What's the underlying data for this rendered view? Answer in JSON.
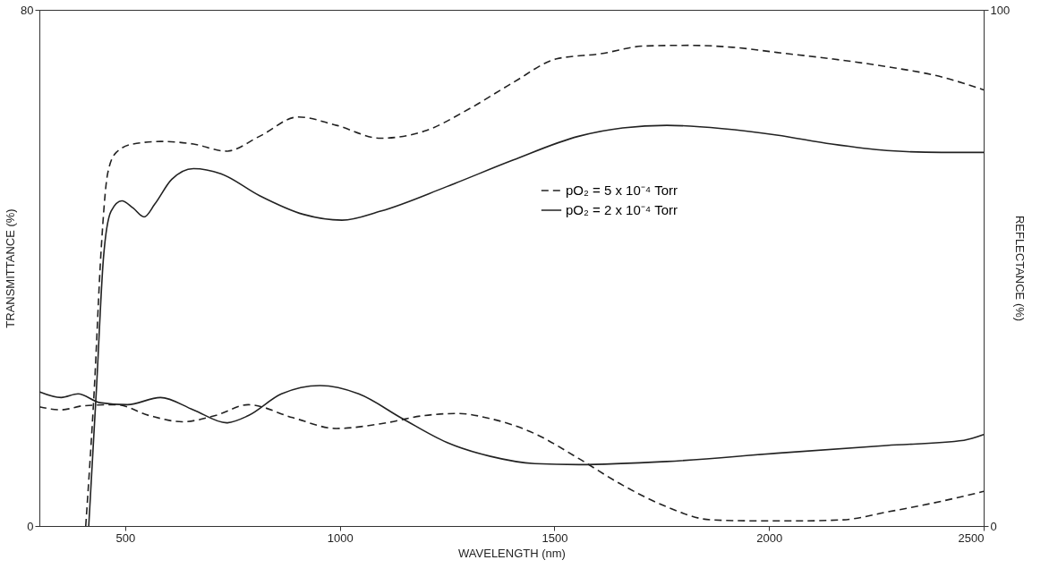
{
  "chart_data": {
    "type": "line",
    "xlabel": "WAVELENGTH (nm)",
    "ylabel": "TRANSMITTANCE (%)",
    "y2label": "REFLECTANCE (%)",
    "xlim": [
      300,
      2500
    ],
    "xticks": [
      500,
      1000,
      1500,
      2000,
      2500
    ],
    "ylim": [
      0,
      80
    ],
    "yticks": [
      0,
      80
    ],
    "y2lim": [
      0,
      100
    ],
    "y2ticks": [
      0,
      100
    ],
    "grid": false,
    "legend": "right",
    "marker": "none",
    "series": [
      {
        "name": "pO₂ = 5 x 10⁻⁴ Torr",
        "color": "#222222",
        "line_style": "dashed",
        "x": [
          408,
          428,
          444,
          459,
          479,
          518,
          582,
          659,
          736,
          813,
          903,
          992,
          1095,
          1197,
          1300,
          1403,
          1505,
          1608,
          1710,
          1813,
          1915,
          2018,
          2146,
          2274,
          2402,
          2500
        ],
        "values": [
          0,
          21.3,
          42.9,
          54.6,
          57.9,
          59.2,
          59.6,
          59.2,
          58.1,
          60.4,
          63.4,
          62.1,
          60.1,
          61.2,
          64.6,
          68.7,
          72.4,
          73.2,
          74.4,
          74.5,
          74.2,
          73.4,
          72.4,
          71.2,
          69.6,
          67.6
        ]
      },
      {
        "name": "pO₂ = 2 x 10⁻⁴ Torr",
        "color": "#222222",
        "line_style": "solid",
        "x": [
          415,
          433,
          449,
          467,
          492,
          518,
          544,
          569,
          608,
          659,
          723,
          813,
          915,
          1005,
          1095,
          1249,
          1403,
          1556,
          1659,
          1762,
          1890,
          2018,
          2146,
          2274,
          2402,
          2500
        ],
        "values": [
          0,
          21.3,
          41.3,
          48.8,
          50.4,
          49.3,
          47.9,
          49.9,
          53.7,
          55.4,
          54.6,
          51.2,
          48.3,
          47.4,
          48.8,
          52.6,
          56.7,
          60.4,
          61.7,
          62.1,
          61.6,
          60.6,
          59.2,
          58.2,
          57.9,
          57.9
        ]
      },
      {
        "color": "#222222",
        "line_style": "dashed",
        "axis": "y2",
        "x": [
          300,
          351,
          403,
          479,
          556,
          633,
          710,
          787,
          890,
          992,
          1095,
          1197,
          1274,
          1351,
          1454,
          1556,
          1659,
          1762,
          1864,
          1967,
          2069,
          2172,
          2274,
          2402,
          2500
        ],
        "values": [
          23.1,
          22.5,
          23.3,
          23.5,
          21.4,
          20.2,
          21.4,
          23.5,
          21.0,
          18.9,
          19.8,
          21.4,
          21.8,
          20.8,
          17.9,
          13.1,
          7.9,
          3.7,
          1.2,
          1.0,
          1.0,
          1.2,
          2.7,
          4.8,
          6.7
        ]
      },
      {
        "color": "#222222",
        "line_style": "solid",
        "axis": "y2",
        "x": [
          300,
          351,
          390,
          441,
          505,
          582,
          659,
          736,
          787,
          864,
          954,
          1044,
          1146,
          1249,
          1351,
          1454,
          1556,
          1762,
          2018,
          2274,
          2454,
          2500
        ],
        "values": [
          26.0,
          24.9,
          25.6,
          23.9,
          23.5,
          24.9,
          22.5,
          20.0,
          21.4,
          25.6,
          27.2,
          25.6,
          20.8,
          16.2,
          13.5,
          12.1,
          11.9,
          12.5,
          14.1,
          15.6,
          16.6,
          17.7
        ]
      }
    ]
  }
}
